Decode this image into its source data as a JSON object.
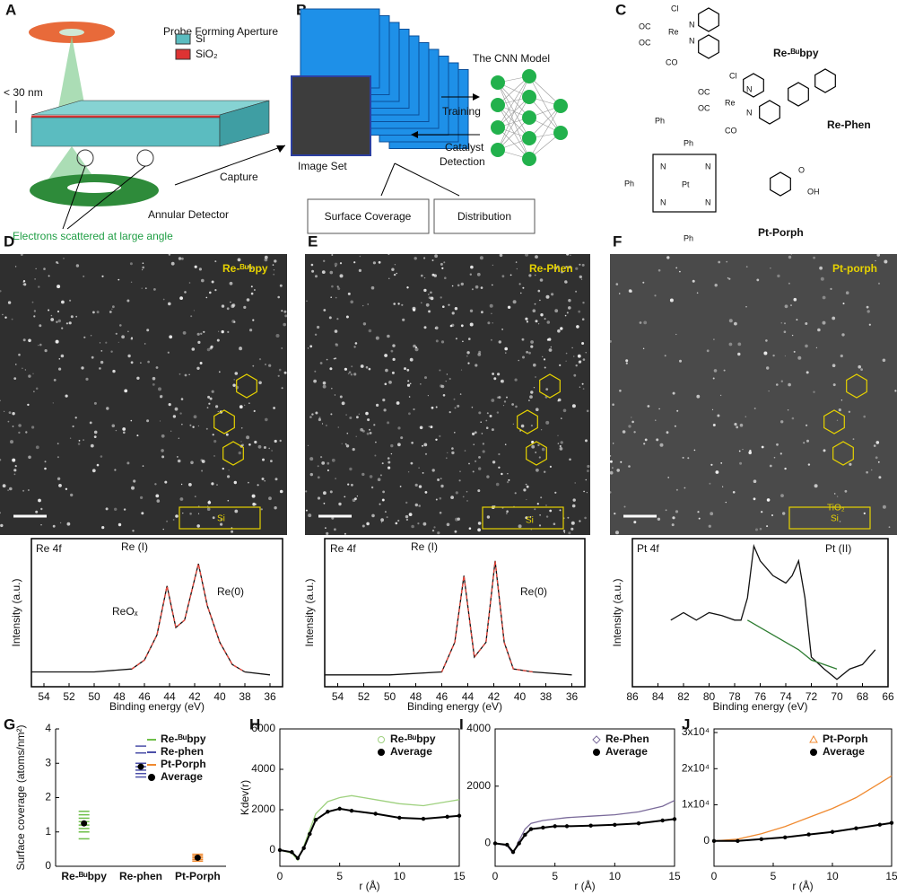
{
  "panel_letters": [
    "A",
    "B",
    "C",
    "D",
    "E",
    "F",
    "G",
    "H",
    "I",
    "J"
  ],
  "panel_a": {
    "aperture": "Probe Forming Aperture",
    "si": "Si",
    "sio2": "SiO₂",
    "thickness": "< 30 nm",
    "capture": "Capture",
    "detector": "Annular Detector",
    "electrons": "Electrons scattered at large angle"
  },
  "panel_b": {
    "image_set": "Image Set",
    "model": "The CNN Model",
    "training": "Training",
    "detection_1": "Catalyst",
    "detection_2": "Detection",
    "coverage": "Surface Coverage",
    "distribution": "Distribution"
  },
  "panel_c": {
    "molecules": [
      "Re-ᴮᵘbpy",
      "Re-Phen",
      "Pt-Porph"
    ],
    "re_bubpy_atoms": [
      "Cl",
      "OC",
      "Re",
      "OC",
      "CO",
      "N",
      "N"
    ],
    "re_phen_atoms": [
      "Cl",
      "OC",
      "Re",
      "OC",
      "CO",
      "N",
      "N"
    ],
    "pt_porph_atoms": [
      "Ph",
      "Ph",
      "Ph",
      "Ph",
      "N",
      "N",
      "N",
      "N",
      "Pt",
      "O",
      "OH"
    ]
  },
  "images": [
    {
      "label": "Re-ᴮᵘbpy",
      "substrate": "Si"
    },
    {
      "label": "Re-Phen",
      "substrate": "Si"
    },
    {
      "label": "Pt-porph",
      "layer": "TiO₂",
      "substrate": "Si"
    }
  ],
  "chart_data": [
    {
      "type": "line",
      "xlabel": "Binding energy (eV)",
      "ylabel": "Intensity (a.u.)",
      "annotations": [
        "Re 4f",
        "Re (I)",
        "ReOₓ",
        "Re(0)"
      ],
      "xlim": [
        55,
        35
      ],
      "xticks": [
        54,
        52,
        50,
        48,
        46,
        44,
        42,
        40,
        38,
        36
      ],
      "ylim": [
        0,
        1
      ],
      "series": [
        {
          "color": "#111111",
          "x": [
            55,
            50,
            47,
            46,
            45,
            44.2,
            43.5,
            42.8,
            41.7,
            41,
            40,
            39,
            38,
            36
          ],
          "values": [
            0.1,
            0.1,
            0.12,
            0.18,
            0.35,
            0.68,
            0.4,
            0.45,
            0.83,
            0.55,
            0.3,
            0.15,
            0.1,
            0.08
          ]
        },
        {
          "color": "#e8473c",
          "style": "dashed",
          "x": [
            47,
            46,
            45,
            44.2,
            43.5,
            42.8,
            41.7,
            41,
            40,
            39,
            38
          ],
          "values": [
            0.12,
            0.18,
            0.35,
            0.68,
            0.4,
            0.45,
            0.83,
            0.55,
            0.3,
            0.15,
            0.1
          ]
        }
      ]
    },
    {
      "type": "line",
      "xlabel": "Binding energy (eV)",
      "ylabel": "Intensity (a.u.)",
      "annotations": [
        "Re 4f",
        "Re (I)",
        "Re(0)"
      ],
      "xlim": [
        55,
        35
      ],
      "xticks": [
        54,
        52,
        50,
        48,
        46,
        44,
        42,
        40,
        38,
        36
      ],
      "ylim": [
        0,
        1
      ],
      "series": [
        {
          "color": "#111111",
          "x": [
            55,
            50,
            46,
            45,
            44.3,
            43.5,
            42.6,
            41.9,
            41.2,
            40.5,
            39,
            36
          ],
          "values": [
            0.08,
            0.08,
            0.1,
            0.3,
            0.75,
            0.2,
            0.3,
            0.85,
            0.3,
            0.12,
            0.1,
            0.08
          ]
        },
        {
          "color": "#e8473c",
          "style": "dashed",
          "x": [
            46,
            45,
            44.3,
            43.5,
            42.6,
            41.9,
            41.2,
            40.5,
            39
          ],
          "values": [
            0.1,
            0.3,
            0.75,
            0.2,
            0.3,
            0.85,
            0.3,
            0.12,
            0.1
          ]
        }
      ]
    },
    {
      "type": "line",
      "xlabel": "Binding energy (eV)",
      "ylabel": "Intensity (a.u.)",
      "annotations": [
        "Pt 4f",
        "Pt (II)"
      ],
      "xlim": [
        86,
        66
      ],
      "xticks": [
        86,
        84,
        82,
        80,
        78,
        76,
        74,
        72,
        70,
        68,
        66
      ],
      "ylim": [
        0,
        1
      ],
      "series": [
        {
          "color": "#111111",
          "x": [
            83,
            82,
            81,
            80,
            79,
            78,
            77.5,
            77,
            76.5,
            76,
            75,
            74,
            73.5,
            73,
            72.5,
            72,
            71,
            70,
            69,
            68,
            67
          ],
          "values": [
            0.45,
            0.5,
            0.45,
            0.5,
            0.48,
            0.45,
            0.45,
            0.6,
            0.95,
            0.85,
            0.75,
            0.7,
            0.75,
            0.85,
            0.6,
            0.2,
            0.12,
            0.05,
            0.12,
            0.15,
            0.25
          ]
        },
        {
          "color": "#2e7d32",
          "x": [
            77,
            75,
            73,
            72,
            70
          ],
          "values": [
            0.45,
            0.35,
            0.25,
            0.18,
            0.12
          ]
        }
      ]
    },
    {
      "type": "strip",
      "ylabel": "Surface coverage (atoms/nm²)",
      "categories": [
        "Re-ᴮᵘbpy",
        "Re-phen",
        "Pt-Porph"
      ],
      "ylim": [
        0,
        4
      ],
      "yticks": [
        0,
        1,
        2,
        3,
        4
      ],
      "legend": "upper right",
      "series": [
        {
          "name": "Re-ᴮᵘbpy",
          "color": "#6fbf4a",
          "values": [
            [
              0.8,
              1.0,
              1.1,
              1.2,
              1.3,
              1.4,
              1.5,
              1.6
            ],
            null,
            null
          ]
        },
        {
          "name": "Re-phen",
          "color": "#4b4fa8",
          "values": [
            null,
            [
              2.6,
              2.7,
              2.8,
              2.9,
              3.0,
              3.3,
              3.5
            ],
            null
          ]
        },
        {
          "name": "Pt-Porph",
          "color": "#f08a30",
          "values": [
            null,
            null,
            [
              0.15,
              0.2,
              0.25,
              0.3,
              0.35
            ]
          ]
        },
        {
          "name": "Average",
          "color": "#000000",
          "values": [
            1.25,
            2.9,
            0.25
          ]
        }
      ]
    },
    {
      "type": "line",
      "xlabel": "r (Å)",
      "ylabel": "Kdev(r)",
      "xlim": [
        0,
        15
      ],
      "xticks": [
        0,
        5,
        10,
        15
      ],
      "ylim": [
        -800,
        6000
      ],
      "yticks": [
        0,
        2000,
        4000,
        6000
      ],
      "legend": "upper right",
      "series": [
        {
          "name": "Re-ᴮᵘbpy",
          "color": "#9fd17f",
          "legend_marker": "open-circle",
          "x": [
            0,
            1,
            1.5,
            2,
            2.5,
            3,
            4,
            5,
            6,
            8,
            10,
            12,
            14,
            15
          ],
          "values": [
            0,
            -150,
            -500,
            200,
            1000,
            1800,
            2400,
            2600,
            2700,
            2500,
            2300,
            2200,
            2400,
            2500
          ]
        },
        {
          "name": "Average",
          "color": "#000000",
          "marker": "dot",
          "x": [
            0,
            1,
            1.5,
            2,
            2.5,
            3,
            4,
            5,
            6,
            8,
            10,
            12,
            14,
            15
          ],
          "values": [
            0,
            -100,
            -400,
            100,
            800,
            1500,
            1900,
            2050,
            1950,
            1800,
            1600,
            1550,
            1650,
            1700
          ]
        }
      ]
    },
    {
      "type": "line",
      "xlabel": "r (Å)",
      "ylabel": "",
      "xlim": [
        0,
        15
      ],
      "xticks": [
        0,
        5,
        10,
        15
      ],
      "ylim": [
        -800,
        4000
      ],
      "yticks": [
        0,
        2000,
        4000
      ],
      "legend": "upper right",
      "series": [
        {
          "name": "Re-Phen",
          "color": "#7a6a9a",
          "legend_marker": "open-diamond",
          "x": [
            0,
            1,
            1.5,
            2,
            2.5,
            3,
            4,
            5,
            6,
            8,
            10,
            12,
            14,
            15
          ],
          "values": [
            0,
            -80,
            -350,
            100,
            500,
            700,
            800,
            850,
            900,
            950,
            1000,
            1100,
            1300,
            1500
          ]
        },
        {
          "name": "Average",
          "color": "#000000",
          "marker": "dot",
          "x": [
            0,
            1,
            1.5,
            2,
            2.5,
            3,
            4,
            5,
            6,
            8,
            10,
            12,
            14,
            15
          ],
          "values": [
            0,
            -50,
            -300,
            0,
            300,
            500,
            550,
            600,
            600,
            620,
            650,
            700,
            800,
            850
          ]
        }
      ]
    },
    {
      "type": "line",
      "xlabel": "r (Å)",
      "ylabel": "",
      "xlim": [
        0,
        15
      ],
      "xticks": [
        0,
        5,
        10,
        15
      ],
      "ylim": [
        -7000,
        31000
      ],
      "yticks": [
        0,
        {
          "value": 10000,
          "label": "1x10⁴"
        },
        {
          "value": 20000,
          "label": "2x10⁴"
        },
        {
          "value": 30000,
          "label": "3x10⁴"
        }
      ],
      "legend": "upper right",
      "series": [
        {
          "name": "Pt-Porph",
          "color": "#f08a30",
          "legend_marker": "open-triangle",
          "x": [
            0,
            2,
            4,
            6,
            8,
            10,
            12,
            14,
            15
          ],
          "values": [
            0,
            500,
            2000,
            4000,
            6500,
            9000,
            12000,
            16000,
            18000
          ]
        },
        {
          "name": "Average",
          "color": "#000000",
          "marker": "dot",
          "x": [
            0,
            2,
            4,
            6,
            8,
            10,
            12,
            14,
            15
          ],
          "values": [
            0,
            0,
            500,
            1000,
            1800,
            2500,
            3500,
            4500,
            5000
          ]
        }
      ]
    }
  ]
}
